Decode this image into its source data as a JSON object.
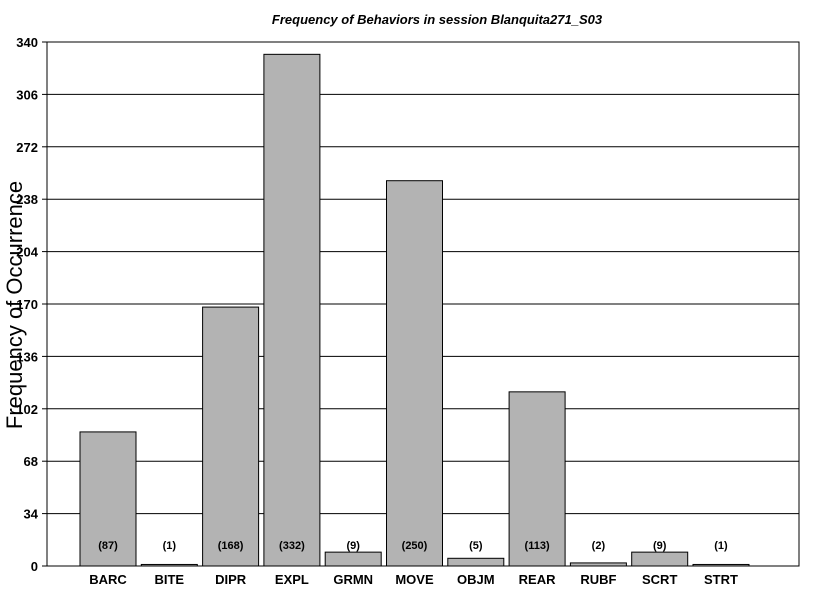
{
  "chart_data": {
    "type": "bar",
    "title": "Frequency of Behaviors in session Blanquita271_S03",
    "xlabel": "",
    "ylabel": "Frequency of Occurrence",
    "categories": [
      "BARC",
      "BITE",
      "DIPR",
      "EXPL",
      "GRMN",
      "MOVE",
      "OBJM",
      "REAR",
      "RUBF",
      "SCRT",
      "STRT"
    ],
    "values": [
      87,
      1,
      168,
      332,
      9,
      250,
      5,
      113,
      2,
      9,
      1
    ],
    "data_labels": [
      "(87)",
      "(1)",
      "(168)",
      "(332)",
      "(9)",
      "(250)",
      "(5)",
      "(113)",
      "(2)",
      "(9)",
      "(1)"
    ],
    "ylim": [
      0,
      340
    ],
    "yticks": [
      0,
      34,
      68,
      102,
      136,
      170,
      204,
      238,
      272,
      306,
      340
    ],
    "grid": true,
    "bar_color": "#b3b3b3"
  }
}
